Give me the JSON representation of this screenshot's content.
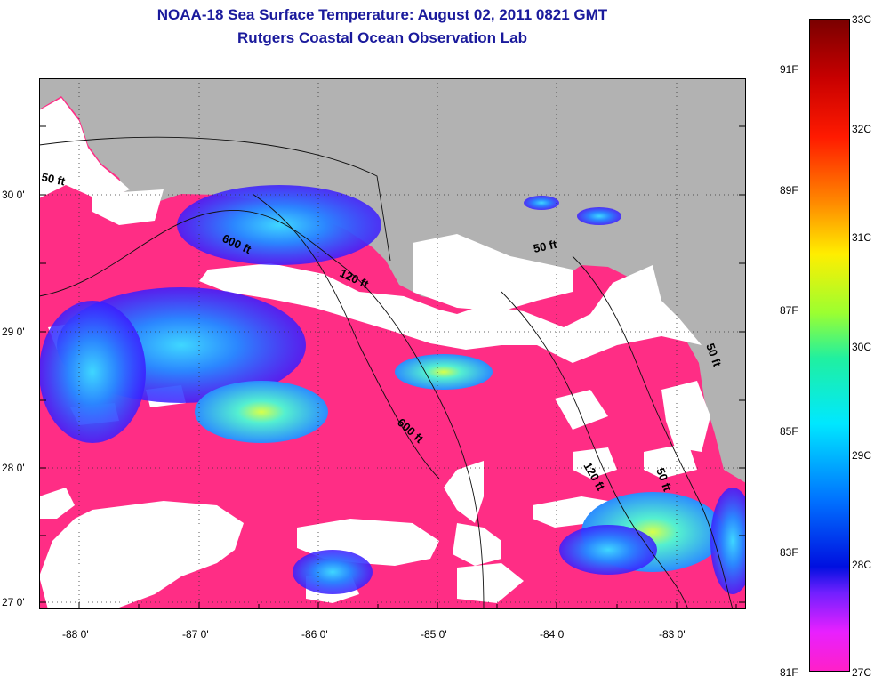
{
  "title": "NOAA-18 Sea Surface Temperature:  August 02, 2011 0821 GMT",
  "subtitle": "Rutgers Coastal Ocean Observation Lab",
  "map": {
    "lat_ticks": [
      "30 0'",
      "29 0'",
      "28 0'",
      "27 0'"
    ],
    "lon_ticks": [
      "-88 0'",
      "-87 0'",
      "-86 0'",
      "-85 0'",
      "-84 0'",
      "-83 0'"
    ],
    "isobaths": [
      {
        "label": "50 ft"
      },
      {
        "label": "600 ft"
      },
      {
        "label": "120 ft"
      },
      {
        "label": "50 ft"
      },
      {
        "label": "600 ft"
      },
      {
        "label": "120 ft"
      },
      {
        "label": "50 ft"
      },
      {
        "label": "50 ft"
      }
    ],
    "colors": {
      "land": "#b2b2b2",
      "cloud": "#ffffff",
      "warm_sst": "#ff2d85",
      "cool_sst": "#1e5cff"
    }
  },
  "colorbar": {
    "celsius_labels": [
      "33C",
      "32C",
      "31C",
      "30C",
      "29C",
      "28C",
      "27C"
    ],
    "fahrenheit_labels": [
      "91F",
      "89F",
      "87F",
      "85F",
      "83F",
      "81F"
    ]
  }
}
